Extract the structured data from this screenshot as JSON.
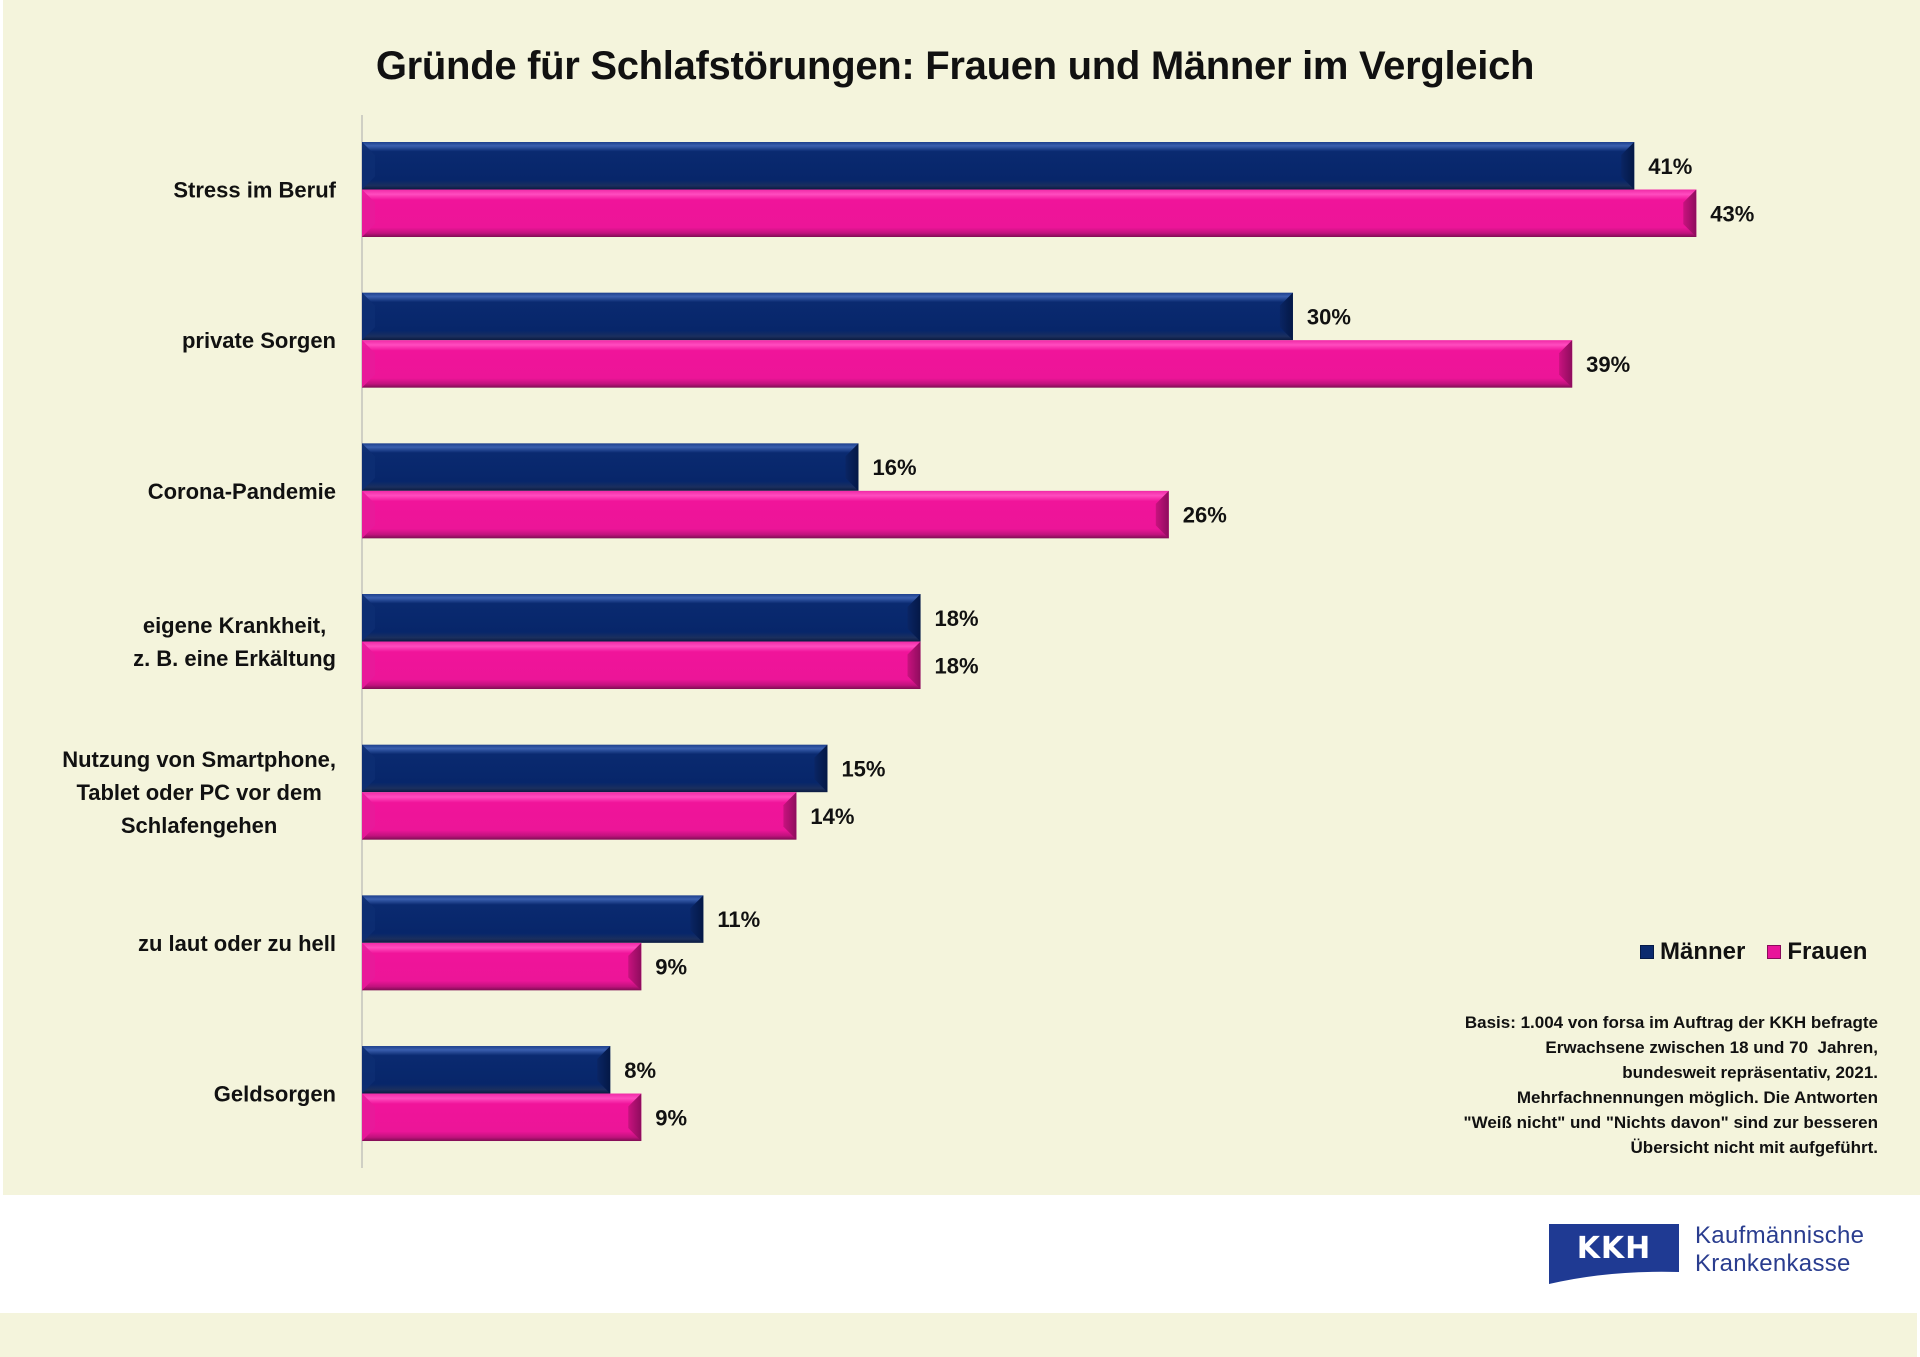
{
  "chart_data": {
    "type": "bar",
    "orientation": "horizontal",
    "title": "Gründe für Schlafstörungen: Frauen und Männer im Vergleich",
    "xlabel": "",
    "ylabel": "",
    "xlim": [
      0,
      50
    ],
    "grid": false,
    "value_suffix": "%",
    "categories": [
      [
        "Stress im Beruf"
      ],
      [
        "private Sorgen"
      ],
      [
        "Corona-Pandemie"
      ],
      [
        "eigene Krankheit,",
        "z. B. eine Erkältung"
      ],
      [
        "Nutzung von Smartphone,",
        "Tablet oder PC vor dem",
        "Schlafengehen"
      ],
      [
        "zu laut oder zu hell"
      ],
      [
        "Geldsorgen"
      ]
    ],
    "series": [
      {
        "name": "Männer",
        "color": "#0b2a6e",
        "values": [
          41,
          30,
          16,
          18,
          15,
          11,
          8
        ]
      },
      {
        "name": "Frauen",
        "color": "#ec1598",
        "values": [
          43,
          39,
          26,
          18,
          14,
          9,
          9
        ]
      }
    ],
    "legend_position": "bottom-right"
  },
  "legend": {
    "items": [
      "Männer",
      "Frauen"
    ]
  },
  "footnote": {
    "lines": [
      "Basis: 1.004 von forsa im Auftrag der KKH befragte",
      "Erwachsene zwischen 18 und 70  Jahren,",
      "bundesweit repräsentativ, 2021.",
      "Mehrfachnennungen möglich. Die Antworten",
      "\"Weiß nicht\" und \"Nichts davon\" sind zur besseren",
      "Übersicht nicht mit aufgeführt."
    ]
  },
  "logo": {
    "abbreviation": "KKH",
    "line1": "Kaufmännische",
    "line2": "Krankenkasse",
    "color": "#1f3a93"
  }
}
